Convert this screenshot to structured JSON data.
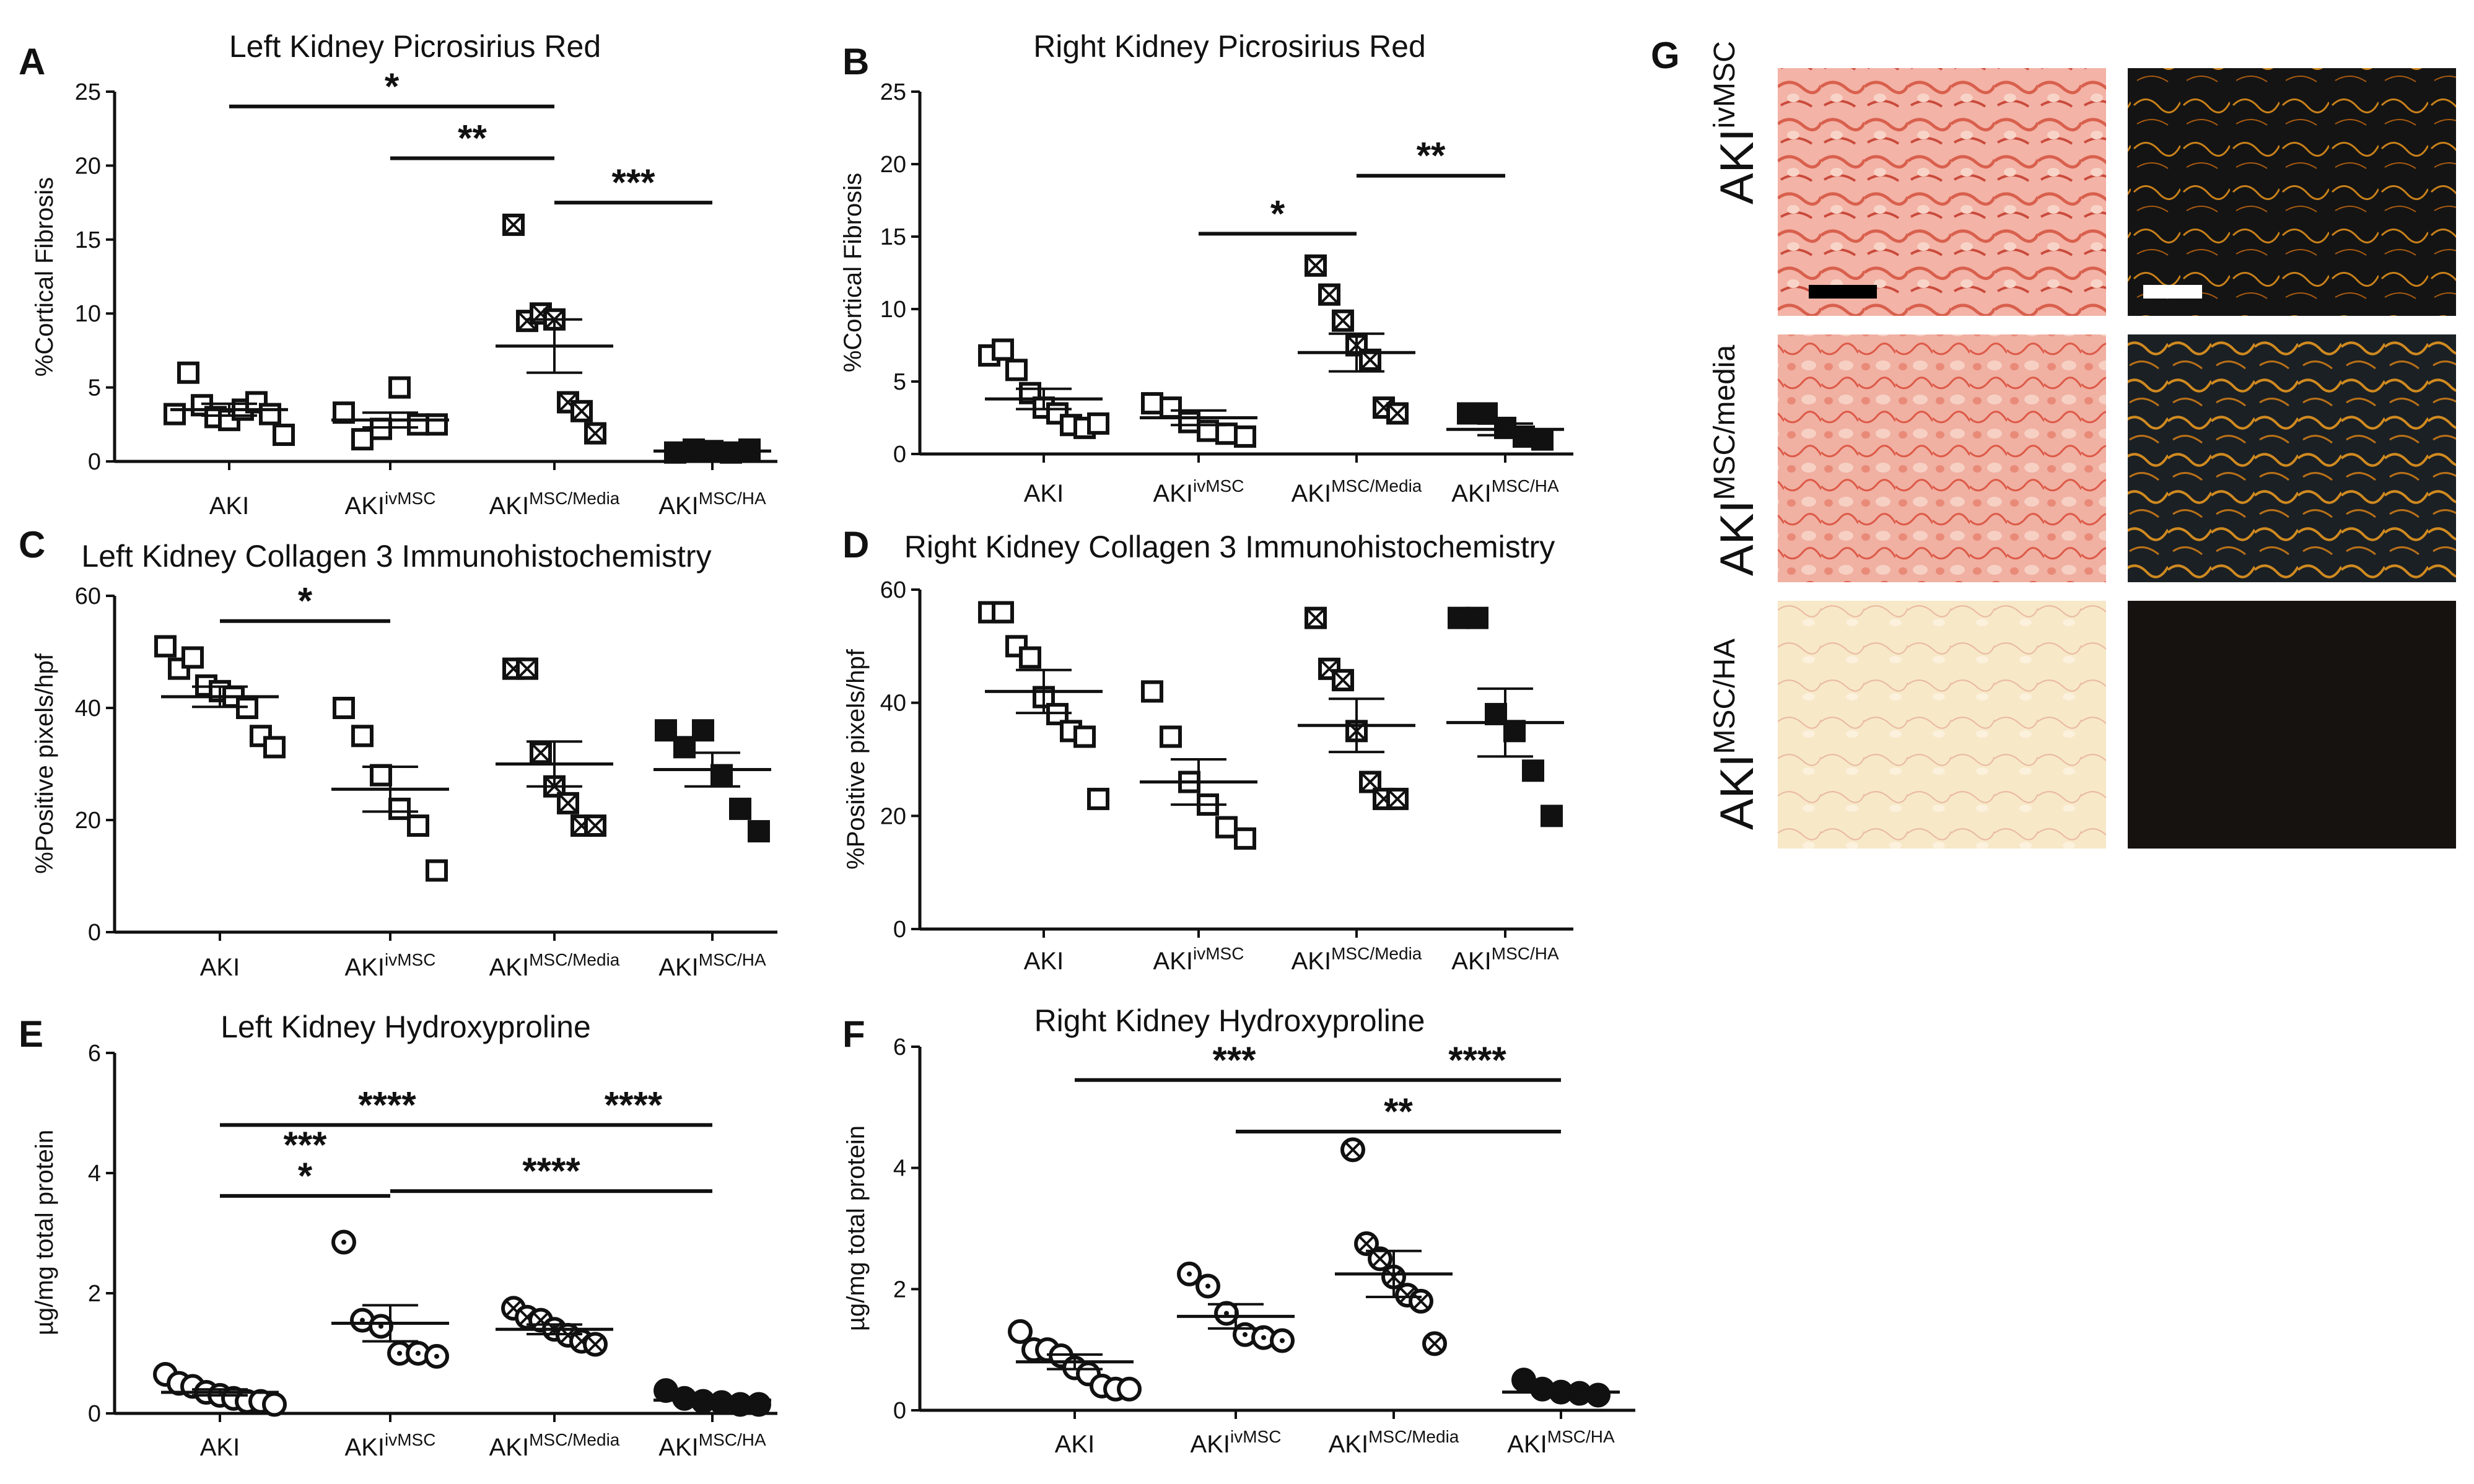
{
  "figure": {
    "row_labels": [
      "AKI",
      "ivMSC",
      "AKI",
      "MSC/media",
      "AKI",
      "MSC/HA"
    ],
    "legend_colors": {
      "open": "#ffffff",
      "filled": "#111111",
      "stroke": "#111111"
    }
  },
  "chart_data": [
    {
      "panel": "A",
      "type": "scatter",
      "title": "Left  Kidney Picrosirius Red",
      "ylabel": "%Cortical Fibrosis",
      "ylim": [
        0,
        25
      ],
      "yticks": [
        0,
        5,
        10,
        15,
        20,
        25
      ],
      "categories": [
        {
          "base": "AKI",
          "sup": ""
        },
        {
          "base": "AKI",
          "sup": "ivMSC"
        },
        {
          "base": "AKI",
          "sup": "MSC/Media"
        },
        {
          "base": "AKI",
          "sup": "MSC/HA"
        }
      ],
      "markers": [
        "square",
        "square",
        "square-x",
        "square-filled"
      ],
      "points": [
        [
          3.2,
          6.0,
          3.8,
          3.0,
          2.8,
          3.5,
          4.0,
          3.2,
          1.8
        ],
        [
          3.3,
          1.5,
          2.2,
          5.0,
          2.5,
          2.5
        ],
        [
          16.0,
          9.5,
          10.0,
          9.6,
          4.0,
          3.4,
          1.9
        ],
        [
          0.6,
          0.8,
          0.7,
          0.6,
          0.8
        ]
      ],
      "means": [
        3.5,
        2.8,
        7.8,
        0.7
      ],
      "sems": [
        0.4,
        0.5,
        1.8,
        0.05
      ],
      "significance": [
        {
          "from": 0,
          "to": 2,
          "y": 24,
          "label": "*"
        },
        {
          "from": 1,
          "to": 2,
          "y": 20.5,
          "label": "**"
        },
        {
          "from": 2,
          "to": 3,
          "y": 17.5,
          "label": "***"
        }
      ]
    },
    {
      "panel": "B",
      "type": "scatter",
      "title": "Right Kidney Picrosirius Red",
      "ylabel": "%Cortical Fibrosis",
      "ylim": [
        0,
        25
      ],
      "yticks": [
        0,
        5,
        10,
        15,
        20,
        25
      ],
      "categories": [
        {
          "base": "AKI",
          "sup": ""
        },
        {
          "base": "AKI",
          "sup": "ivMSC"
        },
        {
          "base": "AKI",
          "sup": "MSC/Media"
        },
        {
          "base": "AKI",
          "sup": "MSC/HA"
        }
      ],
      "markers": [
        "square",
        "square",
        "square-x",
        "square-filled"
      ],
      "points": [
        [
          6.8,
          7.2,
          5.8,
          4.2,
          3.2,
          2.8,
          2.0,
          1.8,
          2.1
        ],
        [
          3.5,
          3.2,
          2.2,
          1.6,
          1.4,
          1.2
        ],
        [
          13.0,
          11.0,
          9.2,
          7.5,
          6.5,
          3.2,
          2.8
        ],
        [
          2.8,
          2.8,
          1.8,
          1.2,
          1.0
        ]
      ],
      "means": [
        3.8,
        2.5,
        7.0,
        1.7
      ],
      "sems": [
        0.7,
        0.5,
        1.3,
        0.4
      ],
      "significance": [
        {
          "from": 1,
          "to": 2,
          "y": 15.2,
          "label": "*"
        },
        {
          "from": 2,
          "to": 3,
          "y": 19.2,
          "label": "**"
        }
      ]
    },
    {
      "panel": "C",
      "type": "scatter",
      "title": "Left Kidney Collagen 3 Immunohistochemistry",
      "ylabel": "%Positive pixels/hpf",
      "ylim": [
        0,
        60
      ],
      "yticks": [
        0,
        20,
        40,
        60
      ],
      "categories": [
        {
          "base": "AKI",
          "sup": ""
        },
        {
          "base": "AKI",
          "sup": "ivMSC"
        },
        {
          "base": "AKI",
          "sup": "MSC/Media"
        },
        {
          "base": "AKI",
          "sup": "MSC/HA"
        }
      ],
      "markers": [
        "square",
        "square",
        "square-x",
        "square-filled"
      ],
      "points": [
        [
          51,
          47,
          49,
          44,
          43,
          42,
          40,
          35,
          33
        ],
        [
          40,
          35,
          28,
          22,
          19,
          11
        ],
        [
          47,
          47,
          32,
          26,
          23,
          19,
          19
        ],
        [
          36,
          33,
          36,
          28,
          22,
          18
        ]
      ],
      "means": [
        42,
        25.5,
        30,
        29
      ],
      "sems": [
        1.8,
        4.0,
        4.0,
        3.0
      ],
      "significance": [
        {
          "from": 0,
          "to": 1,
          "y": 55.5,
          "label": "*"
        }
      ]
    },
    {
      "panel": "D",
      "type": "scatter",
      "title": "Right Kidney Collagen 3 Immunohistochemistry",
      "ylabel": "%Positive pixels/hpf",
      "ylim": [
        0,
        60
      ],
      "yticks": [
        0,
        20,
        40,
        60
      ],
      "categories": [
        {
          "base": "AKI",
          "sup": ""
        },
        {
          "base": "AKI",
          "sup": "ivMSC"
        },
        {
          "base": "AKI",
          "sup": "MSC/Media"
        },
        {
          "base": "AKI",
          "sup": "MSC/HA"
        }
      ],
      "markers": [
        "square",
        "square",
        "square-x",
        "square-filled"
      ],
      "points": [
        [
          56,
          56,
          50,
          48,
          41,
          38,
          35,
          34,
          23
        ],
        [
          42,
          34,
          26,
          22,
          18,
          16
        ],
        [
          55,
          46,
          44,
          35,
          26,
          23,
          23
        ],
        [
          55,
          55,
          38,
          35,
          28,
          20
        ]
      ],
      "means": [
        42,
        26,
        36,
        36.5
      ],
      "sems": [
        3.8,
        4.0,
        4.7,
        6.0
      ],
      "significance": []
    },
    {
      "panel": "E",
      "type": "scatter",
      "title": "Left Kidney Hydroxyproline",
      "ylabel": "µg/mg total protein",
      "ylim": [
        0,
        6
      ],
      "yticks": [
        0,
        2,
        4,
        6
      ],
      "categories": [
        {
          "base": "AKI",
          "sup": ""
        },
        {
          "base": "AKI",
          "sup": "ivMSC"
        },
        {
          "base": "AKI",
          "sup": "MSC/Media"
        },
        {
          "base": "AKI",
          "sup": "MSC/HA"
        }
      ],
      "markers": [
        "circle",
        "circle-dot",
        "circle-x",
        "circle-filled"
      ],
      "points": [
        [
          0.65,
          0.5,
          0.45,
          0.35,
          0.3,
          0.25,
          0.2,
          0.2,
          0.15
        ],
        [
          2.85,
          1.55,
          1.45,
          1.0,
          1.0,
          0.95
        ],
        [
          1.75,
          1.6,
          1.55,
          1.4,
          1.3,
          1.2,
          1.15
        ],
        [
          0.38,
          0.25,
          0.2,
          0.18,
          0.15,
          0.15
        ]
      ],
      "means": [
        0.35,
        1.5,
        1.4,
        0.22
      ],
      "sems": [
        0.05,
        0.3,
        0.08,
        0.03
      ],
      "significance": [
        {
          "from": 0,
          "to": 2,
          "y": 4.8,
          "label": "****"
        },
        {
          "from": 2,
          "to": 3,
          "y": 4.8,
          "label": "****"
        },
        {
          "from": 0,
          "to": 1,
          "y": 3.62,
          "label": "***\n*"
        },
        {
          "from": 1,
          "to": 3,
          "y": 3.7,
          "label": "****"
        }
      ]
    },
    {
      "panel": "F",
      "type": "scatter",
      "title": "Right Kidney Hydroxyproline",
      "ylabel": "µg/mg total protein",
      "ylim": [
        0,
        6
      ],
      "yticks": [
        0,
        2,
        4,
        6
      ],
      "categories": [
        {
          "base": "AKI",
          "sup": ""
        },
        {
          "base": "AKI",
          "sup": "ivMSC"
        },
        {
          "base": "AKI",
          "sup": "MSC/Media"
        },
        {
          "base": "AKI",
          "sup": "MSC/HA"
        }
      ],
      "markers": [
        "circle",
        "circle-dot",
        "circle-x",
        "circle-filled"
      ],
      "points": [
        [
          1.3,
          1.0,
          1.0,
          0.9,
          0.7,
          0.6,
          0.4,
          0.35,
          0.35
        ],
        [
          2.25,
          2.05,
          1.6,
          1.25,
          1.2,
          1.15
        ],
        [
          4.3,
          2.75,
          2.5,
          2.2,
          1.9,
          1.8,
          1.1
        ],
        [
          0.5,
          0.35,
          0.3,
          0.28,
          0.25
        ]
      ],
      "means": [
        0.8,
        1.55,
        2.25,
        0.3
      ],
      "sems": [
        0.12,
        0.2,
        0.38,
        0.04
      ],
      "significance": [
        {
          "from": 0,
          "to": 2,
          "y": 5.45,
          "label": "***"
        },
        {
          "from": 2,
          "to": 3,
          "y": 5.45,
          "label": "****"
        },
        {
          "from": 1,
          "to": 3,
          "y": 4.6,
          "label": "**"
        }
      ]
    }
  ]
}
